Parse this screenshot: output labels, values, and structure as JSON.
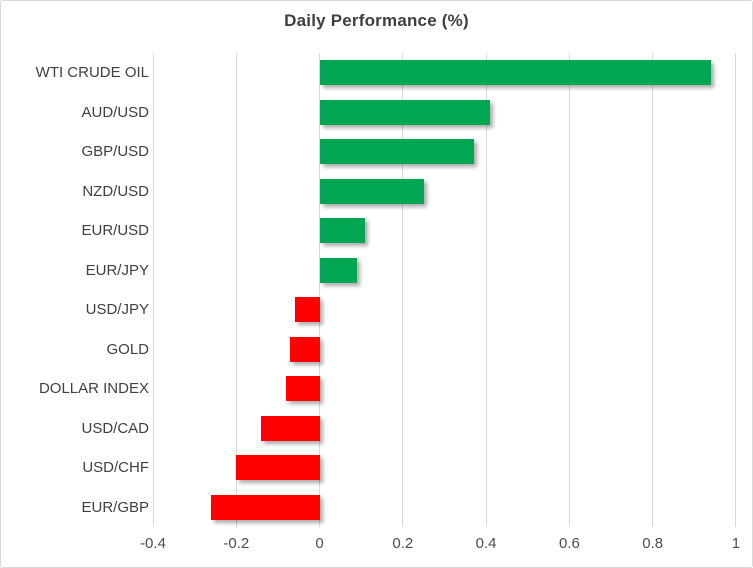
{
  "chart_data": {
    "type": "bar",
    "orientation": "horizontal",
    "title": "Daily Performance (%)",
    "xlabel": "",
    "ylabel": "",
    "grid": "vertical-only",
    "legend": "none",
    "xlim": [
      -0.4,
      1.0
    ],
    "categories": [
      "WTI CRUDE OIL",
      "AUD/USD",
      "GBP/USD",
      "NZD/USD",
      "EUR/USD",
      "EUR/JPY",
      "USD/JPY",
      "GOLD",
      "DOLLAR INDEX",
      "USD/CAD",
      "USD/CHF",
      "EUR/GBP"
    ],
    "values": [
      0.94,
      0.41,
      0.37,
      0.25,
      0.11,
      0.09,
      -0.06,
      -0.07,
      -0.08,
      -0.14,
      -0.2,
      -0.26
    ],
    "x_ticks": [
      {
        "v": -0.4,
        "label": "-0.4"
      },
      {
        "v": -0.2,
        "label": "-0.2"
      },
      {
        "v": 0,
        "label": "0"
      },
      {
        "v": 0.2,
        "label": "0.2"
      },
      {
        "v": 0.4,
        "label": "0.4"
      },
      {
        "v": 0.6,
        "label": "0.6"
      },
      {
        "v": 0.8,
        "label": "0.8"
      },
      {
        "v": 1,
        "label": "1"
      }
    ],
    "colors": {
      "positive": "#00a651",
      "negative": "#ff0000",
      "gridline": "#d9d9d9",
      "title_text": "#3f3f3f",
      "category_text": "#404040",
      "tick_text": "#4d4d4d",
      "background": "#ffffff",
      "border": "#d9d9d9"
    }
  }
}
